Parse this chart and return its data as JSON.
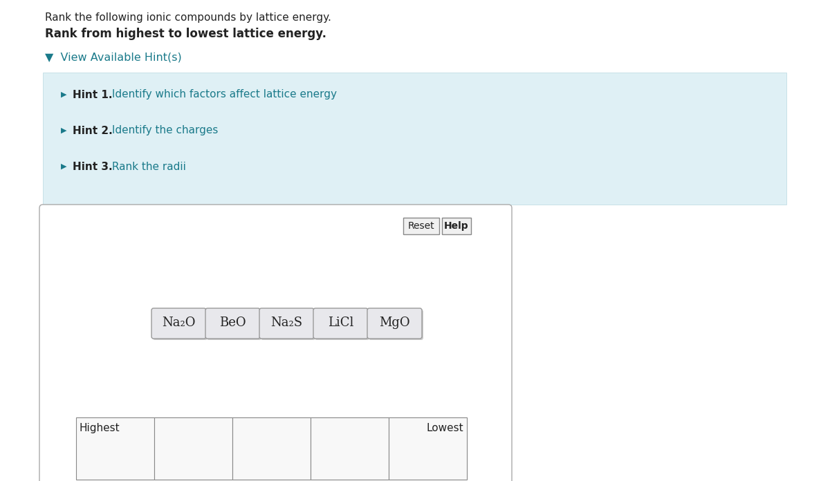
{
  "title_line1": "Rank the following ionic compounds by lattice energy.",
  "title_line2": "Rank from highest to lowest lattice energy.",
  "view_hints_text": "▼  View Available Hint(s)",
  "hints": [
    {
      "label": "Hint 1.",
      "text": " Identify which factors affect lattice energy"
    },
    {
      "label": "Hint 2.",
      "text": " Identify the charges"
    },
    {
      "label": "Hint 3.",
      "text": " Rank the radii"
    }
  ],
  "compounds": [
    "Na₂O",
    "BeO",
    "Na₂S",
    "LiCl",
    "MgO"
  ],
  "highest_label": "Highest",
  "lowest_label": "Lowest",
  "reset_label": "Reset",
  "help_label": "Help",
  "bg_color": "#ffffff",
  "hint_bg_color": "#dff0f5",
  "hint_border_color": "#b8d8e0",
  "box_bg_color": "#e8e8ec",
  "box_border_color": "#999999",
  "teal_color": "#1a7a8a",
  "dark_text": "#222222",
  "ranking_box_color": "#f8f8f8",
  "ranking_border_color": "#888888",
  "main_box_border": "#aaaaaa"
}
